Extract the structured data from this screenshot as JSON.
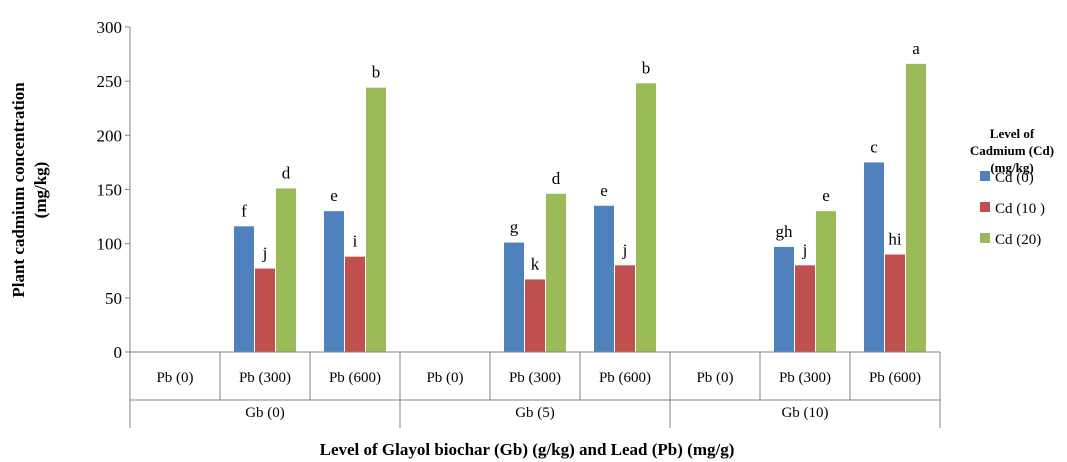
{
  "chart_data": {
    "type": "bar",
    "ylabel_line1": "Plant cadmium concentration",
    "ylabel_line2": "(mg/kg)",
    "xlabel": "Level of Glayol biochar (Gb) (g/kg) and Lead (Pb) (mg/g)",
    "ylim": [
      0,
      300
    ],
    "yticks": [
      0,
      50,
      100,
      150,
      200,
      250,
      300
    ],
    "grid": false,
    "legend_position": "right",
    "legend_title": [
      "Level of",
      "Cadmium (Cd)",
      "(mg/kg)"
    ],
    "groups": [
      "Gb (0)",
      "Gb (5)",
      "Gb (10)"
    ],
    "categories": [
      "Pb (0)",
      "Pb (300)",
      "Pb (600)",
      "Pb (0)",
      "Pb (300)",
      "Pb (600)",
      "Pb (0)",
      "Pb (300)",
      "Pb (600)"
    ],
    "series": [
      {
        "name": "Cd (0)",
        "color": "#4F81BD",
        "values": [
          null,
          116,
          130,
          null,
          101,
          135,
          null,
          97,
          175
        ],
        "labels": [
          "",
          "f",
          "e",
          "",
          "g",
          "e",
          "",
          "gh",
          "c"
        ]
      },
      {
        "name": "Cd (10 )",
        "color": "#C0504D",
        "values": [
          null,
          77,
          88,
          null,
          67,
          80,
          null,
          80,
          90
        ],
        "labels": [
          "",
          "j",
          "i",
          "",
          "k",
          "j",
          "",
          "j",
          "hi"
        ]
      },
      {
        "name": "Cd (20)",
        "color": "#9BBB59",
        "values": [
          null,
          151,
          244,
          null,
          146,
          248,
          null,
          130,
          266
        ],
        "labels": [
          "",
          "d",
          "b",
          "",
          "d",
          "b",
          "",
          "e",
          "a"
        ]
      }
    ]
  }
}
